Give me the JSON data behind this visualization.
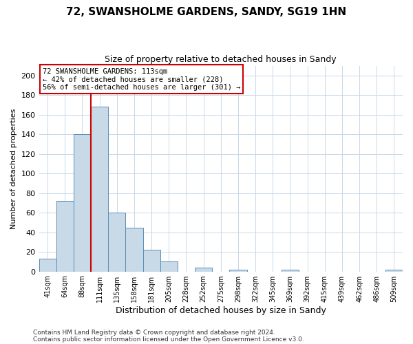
{
  "title": "72, SWANSHOLME GARDENS, SANDY, SG19 1HN",
  "subtitle": "Size of property relative to detached houses in Sandy",
  "xlabel": "Distribution of detached houses by size in Sandy",
  "ylabel": "Number of detached properties",
  "bar_labels": [
    "41sqm",
    "64sqm",
    "88sqm",
    "111sqm",
    "135sqm",
    "158sqm",
    "181sqm",
    "205sqm",
    "228sqm",
    "252sqm",
    "275sqm",
    "298sqm",
    "322sqm",
    "345sqm",
    "369sqm",
    "392sqm",
    "415sqm",
    "439sqm",
    "462sqm",
    "486sqm",
    "509sqm"
  ],
  "bar_values": [
    13,
    72,
    140,
    168,
    60,
    45,
    22,
    10,
    0,
    4,
    0,
    2,
    0,
    0,
    2,
    0,
    0,
    0,
    0,
    0,
    2
  ],
  "bar_color": "#c8d9e8",
  "bar_edge_color": "#5b8db8",
  "ylim": [
    0,
    210
  ],
  "yticks": [
    0,
    20,
    40,
    60,
    80,
    100,
    120,
    140,
    160,
    180,
    200
  ],
  "vline_bar_index": 3,
  "vline_color": "#cc0000",
  "annotation_title": "72 SWANSHOLME GARDENS: 113sqm",
  "annotation_line1": "← 42% of detached houses are smaller (228)",
  "annotation_line2": "56% of semi-detached houses are larger (301) →",
  "annotation_box_color": "#ffffff",
  "annotation_box_edge": "#cc0000",
  "footer1": "Contains HM Land Registry data © Crown copyright and database right 2024.",
  "footer2": "Contains public sector information licensed under the Open Government Licence v3.0.",
  "background_color": "#ffffff",
  "grid_color": "#c8d8e8"
}
